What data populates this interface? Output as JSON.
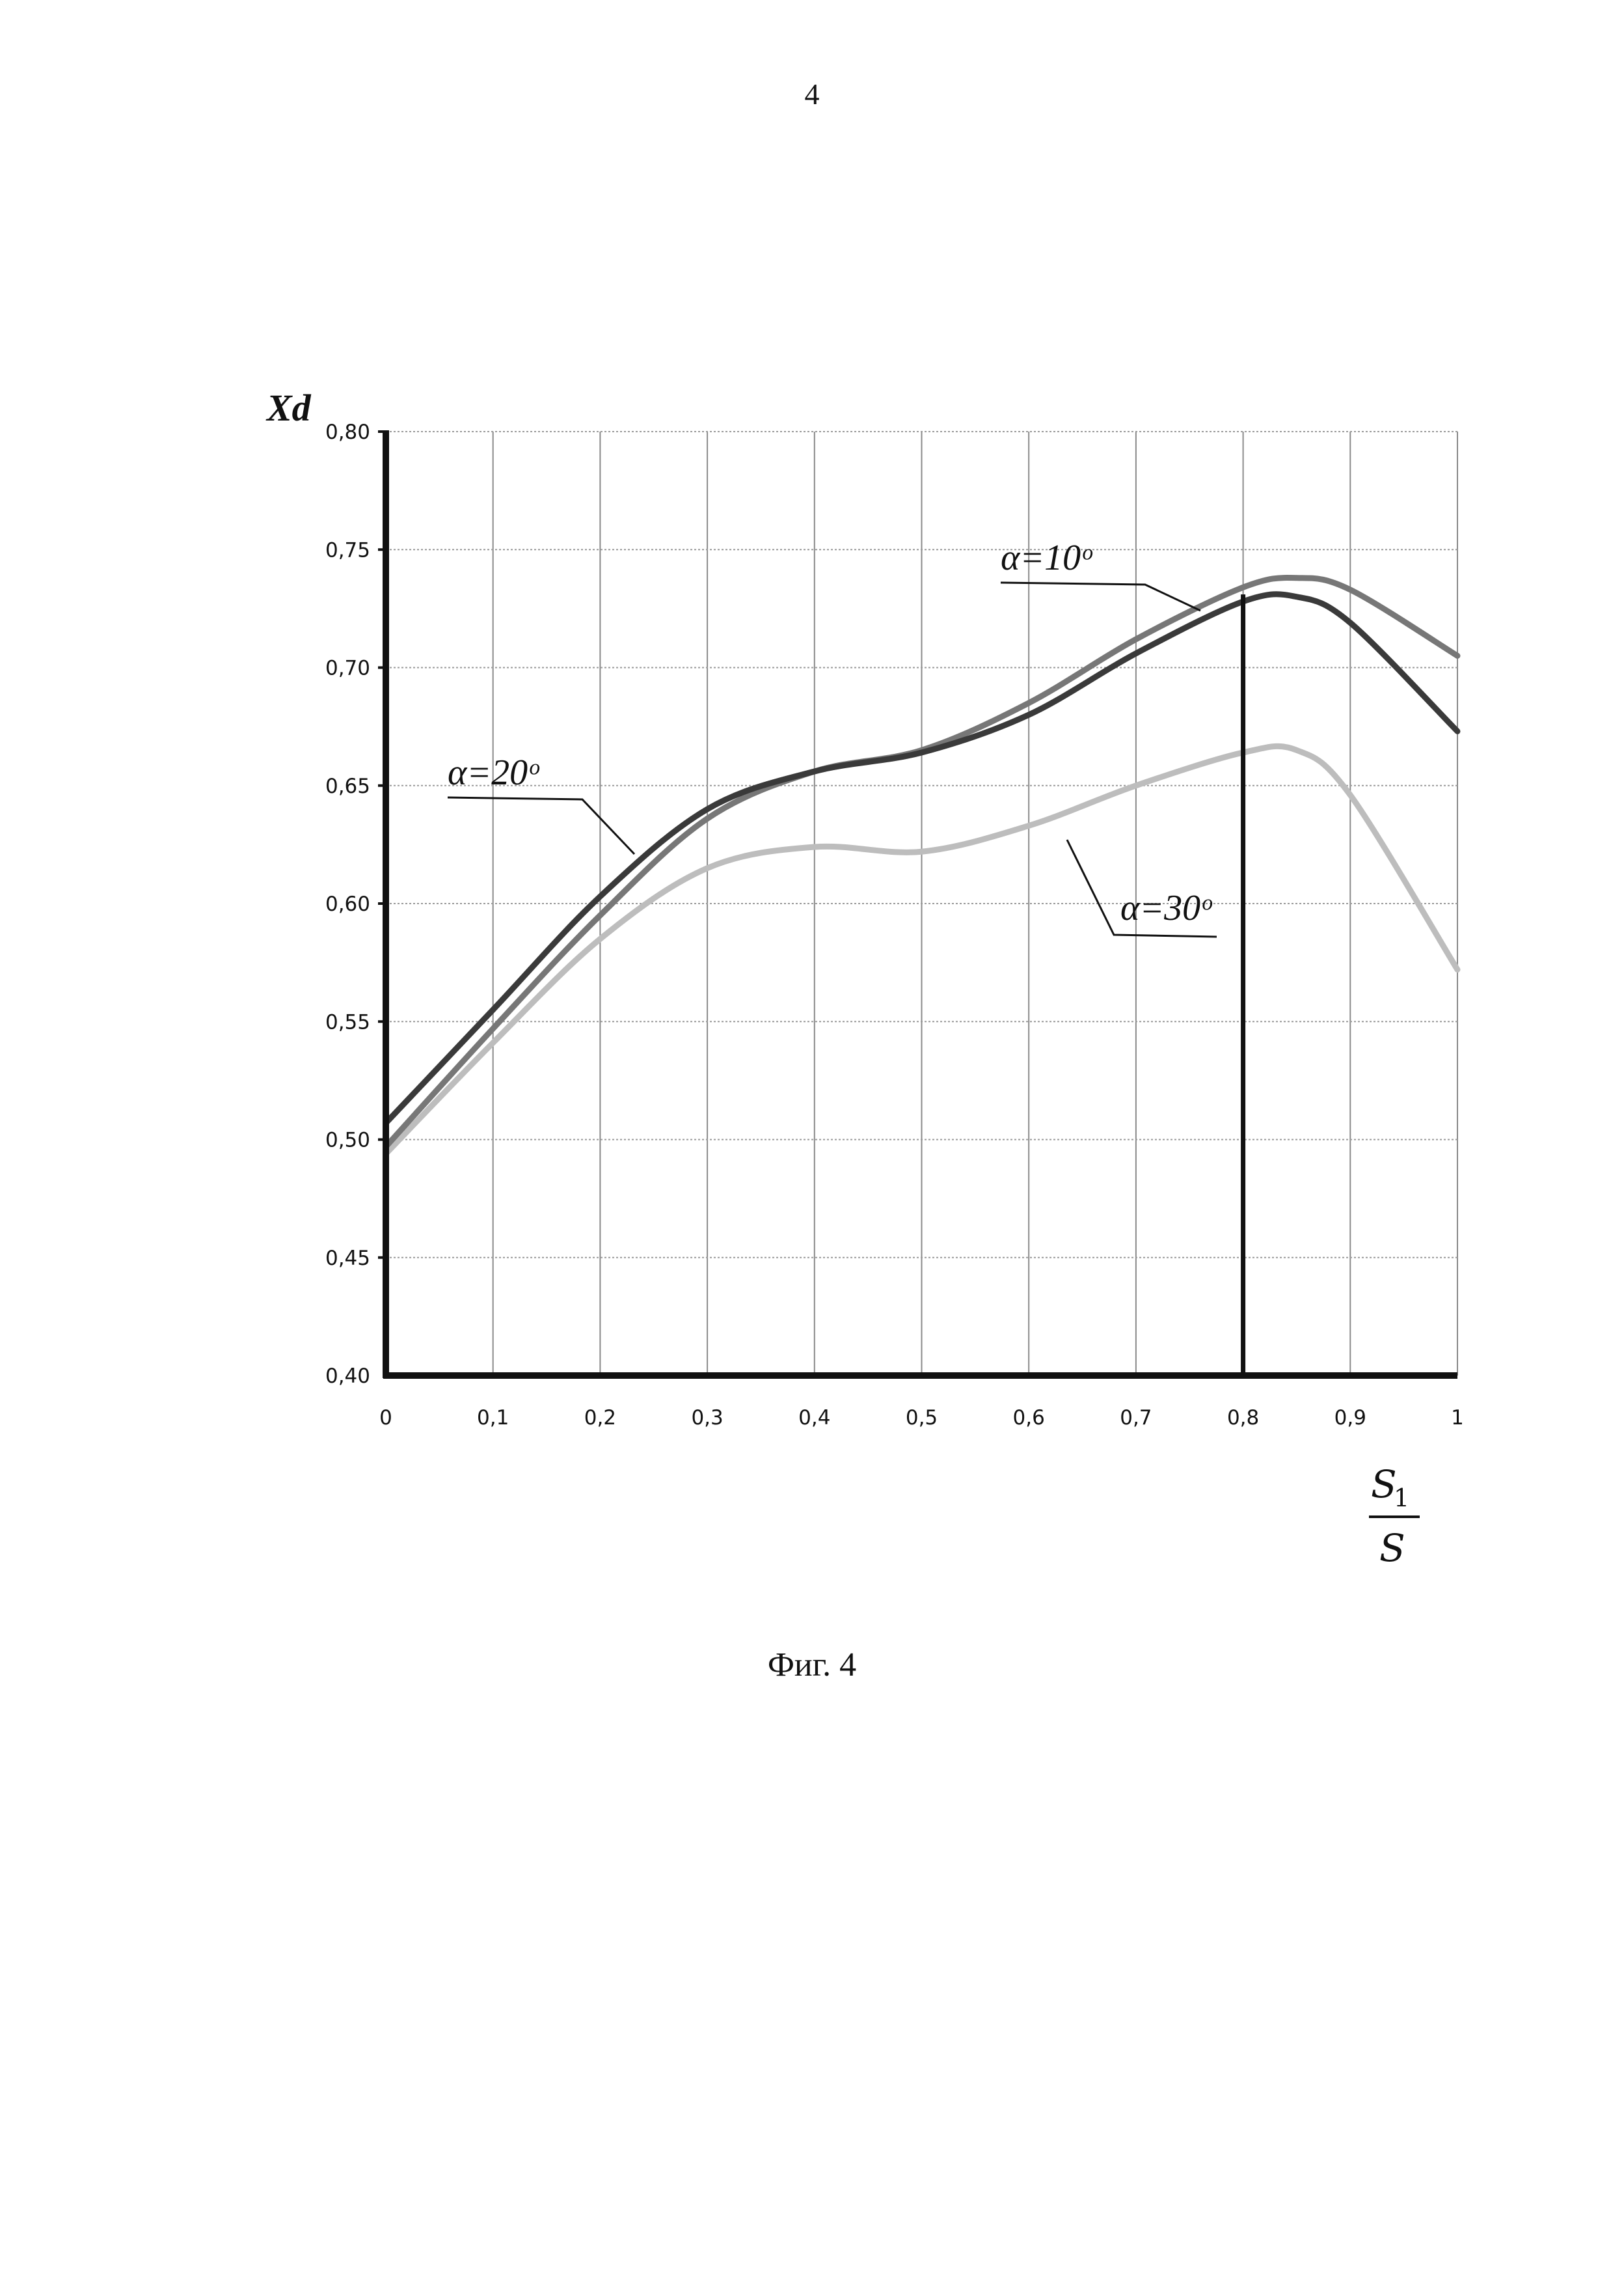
{
  "page_number": "4",
  "caption": "Фиг. 4",
  "chart_data": {
    "type": "line",
    "ylabel": "Xd",
    "xlabel_numerator": "S",
    "xlabel_numerator_sub": "1",
    "xlabel_denominator": "S",
    "xlim": [
      0,
      1
    ],
    "ylim": [
      0.4,
      0.8
    ],
    "x_ticks": [
      "0",
      "0,1",
      "0,2",
      "0,3",
      "0,4",
      "0,5",
      "0,6",
      "0,7",
      "0,8",
      "0,9",
      "1"
    ],
    "y_ticks": [
      "0,40",
      "0,45",
      "0,50",
      "0,55",
      "0,60",
      "0,65",
      "0,70",
      "0,75",
      "0,80"
    ],
    "grid": true,
    "vertical_marker_x": 0.8,
    "series": [
      {
        "name": "α=10°",
        "color": "#777777",
        "x": [
          0,
          0.1,
          0.2,
          0.3,
          0.4,
          0.5,
          0.6,
          0.7,
          0.8,
          0.85,
          0.9,
          1.0
        ],
        "y": [
          0.497,
          0.547,
          0.595,
          0.636,
          0.656,
          0.665,
          0.685,
          0.712,
          0.734,
          0.738,
          0.733,
          0.705
        ]
      },
      {
        "name": "α=20°",
        "color": "#3a3a3a",
        "x": [
          0,
          0.1,
          0.2,
          0.3,
          0.4,
          0.5,
          0.6,
          0.7,
          0.8,
          0.85,
          0.9,
          1.0
        ],
        "y": [
          0.507,
          0.555,
          0.603,
          0.64,
          0.656,
          0.664,
          0.68,
          0.706,
          0.728,
          0.73,
          0.719,
          0.673
        ]
      },
      {
        "name": "α=30°",
        "color": "#bdbdbd",
        "x": [
          0,
          0.1,
          0.2,
          0.3,
          0.4,
          0.5,
          0.6,
          0.7,
          0.8,
          0.85,
          0.9,
          1.0
        ],
        "y": [
          0.494,
          0.541,
          0.585,
          0.615,
          0.624,
          0.622,
          0.633,
          0.65,
          0.664,
          0.665,
          0.646,
          0.572
        ]
      }
    ],
    "series_labels": [
      "α=10ᵒ",
      "α=20ᵒ",
      "α=30ᵒ"
    ]
  }
}
